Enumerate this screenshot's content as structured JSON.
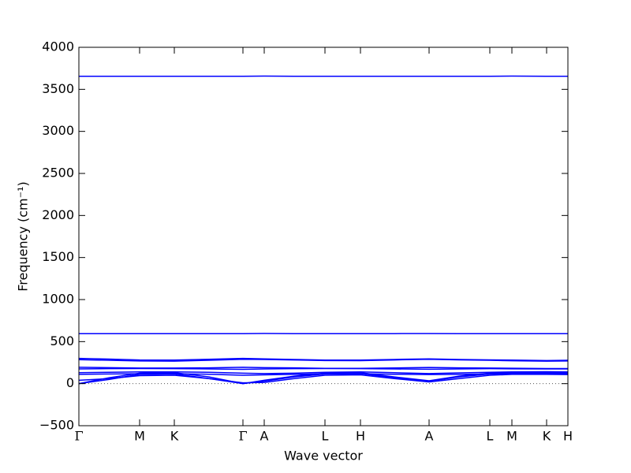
{
  "chart_data": {
    "type": "line",
    "ylabel": "Frequency (cm⁻¹)",
    "xlabel": "Wave vector",
    "x": [
      0,
      38,
      77,
      121,
      165,
      208,
      235,
      273,
      312,
      357,
      400,
      444,
      482,
      521,
      549,
      593,
      620
    ],
    "xlim": [
      0,
      620
    ],
    "xticks": [
      {
        "value": 0,
        "label": "Γ"
      },
      {
        "value": 77,
        "label": "M"
      },
      {
        "value": 121,
        "label": "K"
      },
      {
        "value": 208,
        "label": "Γ"
      },
      {
        "value": 235,
        "label": "A"
      },
      {
        "value": 312,
        "label": "L"
      },
      {
        "value": 357,
        "label": "H"
      },
      {
        "value": 444,
        "label": "A"
      },
      {
        "value": 521,
        "label": "L"
      },
      {
        "value": 549,
        "label": "M"
      },
      {
        "value": 593,
        "label": "K"
      },
      {
        "value": 620,
        "label": "H"
      }
    ],
    "ylim": [
      -500,
      4000
    ],
    "yticks": [
      {
        "value": -500,
        "label": "−500"
      },
      0,
      500,
      1000,
      1500,
      2000,
      2500,
      3000,
      3500,
      4000
    ],
    "zero_line": true,
    "series": [
      {
        "color": "#0000ff",
        "values": [
          3655,
          3655,
          3655,
          3655,
          3655,
          3655,
          3658,
          3655,
          3655,
          3655,
          3655,
          3655,
          3655,
          3655,
          3658,
          3655,
          3656
        ]
      },
      {
        "color": "#0000ff",
        "values": [
          595,
          595,
          594,
          594,
          594,
          595,
          597,
          595,
          594,
          594,
          595,
          596,
          595,
          595,
          594,
          594,
          595
        ]
      },
      {
        "color": "#0000ff",
        "values": [
          300,
          292,
          282,
          280,
          290,
          300,
          295,
          288,
          280,
          280,
          288,
          295,
          288,
          283,
          280,
          275,
          278
        ]
      },
      {
        "color": "#0000ff",
        "values": [
          285,
          278,
          270,
          268,
          278,
          290,
          288,
          282,
          275,
          273,
          282,
          290,
          283,
          278,
          272,
          268,
          270
        ]
      },
      {
        "color": "#0000ff",
        "values": [
          195,
          190,
          185,
          185,
          188,
          195,
          190,
          188,
          182,
          182,
          187,
          192,
          188,
          185,
          183,
          180,
          180
        ]
      },
      {
        "color": "#0000ff",
        "values": [
          175,
          178,
          180,
          178,
          175,
          170,
          175,
          178,
          180,
          178,
          175,
          172,
          175,
          178,
          176,
          175,
          175
        ]
      },
      {
        "color": "#0000ff",
        "values": [
          0,
          70,
          125,
          130,
          80,
          0,
          40,
          90,
          125,
          130,
          80,
          35,
          90,
          125,
          135,
          140,
          135
        ]
      },
      {
        "color": "#0000ff",
        "values": [
          0,
          50,
          110,
          115,
          60,
          0,
          30,
          80,
          115,
          120,
          70,
          30,
          80,
          115,
          125,
          128,
          125
        ]
      },
      {
        "color": "#0000ff",
        "values": [
          130,
          135,
          140,
          140,
          135,
          125,
          120,
          125,
          135,
          140,
          130,
          120,
          128,
          135,
          140,
          142,
          140
        ]
      },
      {
        "color": "#0000ff",
        "values": [
          110,
          115,
          118,
          118,
          112,
          100,
          105,
          110,
          118,
          118,
          112,
          108,
          110,
          115,
          118,
          118,
          118
        ]
      },
      {
        "color": "#0000ff",
        "values": [
          40,
          60,
          95,
          100,
          60,
          10,
          15,
          60,
          100,
          105,
          60,
          20,
          60,
          100,
          110,
          110,
          108
        ]
      }
    ]
  }
}
